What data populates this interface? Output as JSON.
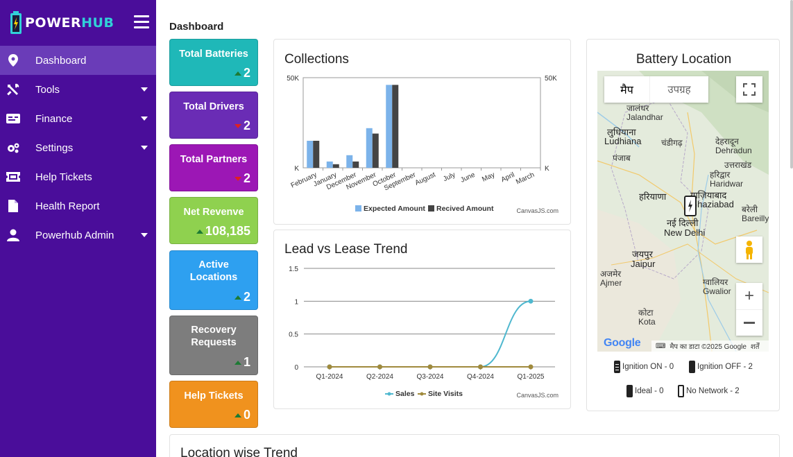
{
  "app": {
    "logo_power": "POWER",
    "logo_hub": "HUB"
  },
  "sidebar": {
    "items": [
      {
        "label": "Dashboard"
      },
      {
        "label": "Tools"
      },
      {
        "label": "Finance"
      },
      {
        "label": "Settings"
      },
      {
        "label": "Help Tickets"
      },
      {
        "label": "Health Report"
      },
      {
        "label": "Powerhub Admin"
      }
    ]
  },
  "page": {
    "title": "Dashboard"
  },
  "cards": [
    {
      "label": "Total Batteries",
      "value": "2",
      "trend": "up",
      "color": "#1fb8b8"
    },
    {
      "label": "Total Drivers",
      "value": "2",
      "trend": "down",
      "color": "#6a2cb5"
    },
    {
      "label": "Total Partners",
      "value": "2",
      "trend": "down",
      "color": "#9c17b5"
    },
    {
      "label": "Net Revenve",
      "value": "108,185",
      "trend": "up",
      "color": "#8fd14f"
    },
    {
      "label": "Active Locations",
      "value": "2",
      "trend": "up",
      "color": "#2ea0f0"
    },
    {
      "label": "Recovery Requests",
      "value": "1",
      "trend": "up",
      "color": "#7d7d7d"
    },
    {
      "label": "Help Tickets",
      "value": "0",
      "trend": "up",
      "color": "#f0921e"
    }
  ],
  "collections": {
    "title": "Collections",
    "credit": "CanvasJS.com",
    "chart_data": {
      "type": "bar",
      "categories": [
        "February",
        "January",
        "December",
        "November",
        "October",
        "September",
        "August",
        "July",
        "June",
        "May",
        "April",
        "March"
      ],
      "series": [
        {
          "name": "Expected Amount",
          "color": "#7cb3ea",
          "values": [
            15000,
            3500,
            7000,
            22000,
            46000,
            0,
            0,
            0,
            0,
            0,
            0,
            0
          ]
        },
        {
          "name": "Recived Amount",
          "color": "#444444",
          "values": [
            15000,
            2000,
            3500,
            19000,
            46000,
            0,
            0,
            0,
            0,
            0,
            0,
            0
          ]
        }
      ],
      "y_ticks": [
        "K",
        "50K"
      ],
      "ylim": [
        0,
        50000
      ]
    }
  },
  "lead_lease": {
    "title": "Lead vs Lease Trend",
    "credit": "CanvasJS.com",
    "chart_data": {
      "type": "line",
      "categories": [
        "Q1-2024",
        "Q2-2024",
        "Q3-2024",
        "Q4-2024",
        "Q1-2025"
      ],
      "series": [
        {
          "name": "Sales",
          "color": "#4fb8cf",
          "values": [
            0,
            0,
            0,
            0,
            1
          ]
        },
        {
          "name": "Site Visits",
          "color": "#a08a3c",
          "values": [
            0,
            0,
            0,
            0,
            0
          ]
        }
      ],
      "y_ticks": [
        "0",
        "0.5",
        "1",
        "1.5"
      ],
      "ylim": [
        0,
        1.5
      ]
    }
  },
  "battery_location": {
    "title": "Battery Location",
    "map_tab": "मैप",
    "satellite_tab": "उपग्रह",
    "map_labels": {
      "jalandhar": "जालंधर\nJalandhar",
      "ludhiana_hi": "लुधियाना",
      "ludhiana": "Ludhiana",
      "punjab": "पंजाब",
      "chandigarh": "चंडीगढ़",
      "dehradun": "देहरादून\nDehradun",
      "uttarakhand": "उत्तराखंड",
      "haridwar": "हरिद्वार\nHaridwar",
      "haryana": "हरियाणा",
      "ghaziabad": "गाज़ियाबाद\nGhaziabad",
      "delhi_hi": "नई दिल्ली",
      "delhi": "New Delhi",
      "bareilly": "बरेली\nBareilly",
      "jaipur_hi": "जयपुर",
      "jaipur": "Jaipur",
      "ajmer": "अजमेर\nAjmer",
      "gwalior": "ग्वालियर\nGwalior",
      "kota": "कोटा\nKota"
    },
    "attribution": "मैप का डाटा ©2025 Google",
    "terms": "शर्तें",
    "google": "Google",
    "legend": {
      "ignition_on": "Ignition ON - 0",
      "ignition_off": "Ignition OFF - 2",
      "ideal": "Ideal - 0",
      "no_network": "No Network - 2"
    }
  },
  "bottom": {
    "title": "Location wise Trend"
  }
}
